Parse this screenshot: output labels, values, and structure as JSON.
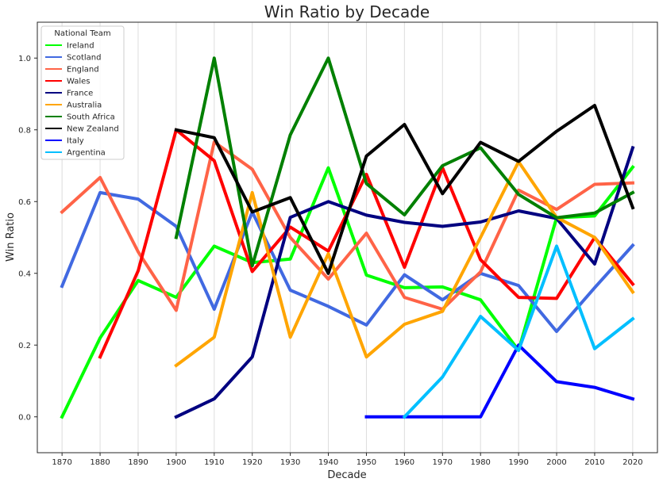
{
  "chart_data": {
    "type": "line",
    "title": "Win Ratio by Decade",
    "xlabel": "Decade",
    "ylabel": "Win Ratio",
    "x": [
      1870,
      1880,
      1890,
      1900,
      1910,
      1920,
      1930,
      1940,
      1950,
      1960,
      1970,
      1980,
      1990,
      2000,
      2010,
      2020
    ],
    "xlim": [
      1863.5,
      2026.5
    ],
    "ylim": [
      -0.1,
      1.1
    ],
    "yticks": [
      0.0,
      0.2,
      0.4,
      0.6,
      0.8,
      1.0
    ],
    "ytick_labels": [
      "0.0",
      "0.2",
      "0.4",
      "0.6",
      "0.8",
      "1.0"
    ],
    "xtick_labels": [
      "1870",
      "1880",
      "1890",
      "1900",
      "1910",
      "1920",
      "1930",
      "1940",
      "1950",
      "1960",
      "1970",
      "1980",
      "1990",
      "2000",
      "2010",
      "2020"
    ],
    "grid": "x",
    "legend": {
      "title": "National Team",
      "placement": "top-left"
    },
    "series": [
      {
        "name": "Ireland",
        "color": "#00ff00",
        "values": [
          0.0,
          0.22,
          0.38,
          0.333,
          0.476,
          0.43,
          0.44,
          0.694,
          0.395,
          0.36,
          0.362,
          0.326,
          0.185,
          0.555,
          0.56,
          0.696
        ]
      },
      {
        "name": "Scotland",
        "color": "#4169e1",
        "values": [
          0.364,
          0.625,
          0.607,
          0.531,
          0.3,
          0.571,
          0.353,
          0.308,
          0.256,
          0.396,
          0.326,
          0.4,
          0.366,
          0.238,
          0.36,
          0.478
        ]
      },
      {
        "name": "England",
        "color": "#ff6347",
        "values": [
          0.571,
          0.667,
          0.46,
          0.297,
          0.766,
          0.69,
          0.5,
          0.384,
          0.512,
          0.333,
          0.3,
          0.404,
          0.632,
          0.578,
          0.648,
          0.652
        ]
      },
      {
        "name": "Wales",
        "color": "#ff0000",
        "values": [
          null,
          0.167,
          0.407,
          0.8,
          0.714,
          0.405,
          0.529,
          0.462,
          0.676,
          0.417,
          0.694,
          0.438,
          0.333,
          0.33,
          0.5,
          0.37
        ]
      },
      {
        "name": "France",
        "color": "#000080",
        "values": [
          null,
          null,
          null,
          0.0,
          0.05,
          0.167,
          0.556,
          0.6,
          0.562,
          0.542,
          0.531,
          0.543,
          0.574,
          0.553,
          0.426,
          0.75
        ]
      },
      {
        "name": "Australia",
        "color": "#ffa500",
        "values": [
          null,
          null,
          null,
          0.143,
          0.222,
          0.625,
          0.222,
          0.455,
          0.167,
          0.258,
          0.294,
          0.5,
          0.711,
          0.556,
          0.5,
          0.348
        ]
      },
      {
        "name": "South Africa",
        "color": "#008000",
        "values": [
          null,
          null,
          null,
          0.5,
          1.0,
          0.421,
          0.786,
          1.0,
          0.65,
          0.563,
          0.7,
          0.75,
          0.62,
          0.555,
          0.568,
          0.625
        ]
      },
      {
        "name": "New Zealand",
        "color": "#000000",
        "values": [
          null,
          null,
          null,
          0.8,
          0.778,
          0.571,
          0.611,
          0.4,
          0.727,
          0.815,
          0.622,
          0.765,
          0.712,
          0.796,
          0.868,
          0.583
        ]
      },
      {
        "name": "Italy",
        "color": "#0000ff",
        "values": [
          null,
          null,
          null,
          null,
          null,
          null,
          null,
          null,
          0.0,
          0.0,
          0.0,
          0.0,
          0.2,
          0.098,
          0.082,
          0.05
        ]
      },
      {
        "name": "Argentina",
        "color": "#00bfff",
        "values": [
          null,
          null,
          null,
          null,
          null,
          null,
          null,
          null,
          null,
          0.0,
          0.111,
          0.28,
          0.185,
          0.476,
          0.19,
          0.273
        ]
      }
    ]
  }
}
